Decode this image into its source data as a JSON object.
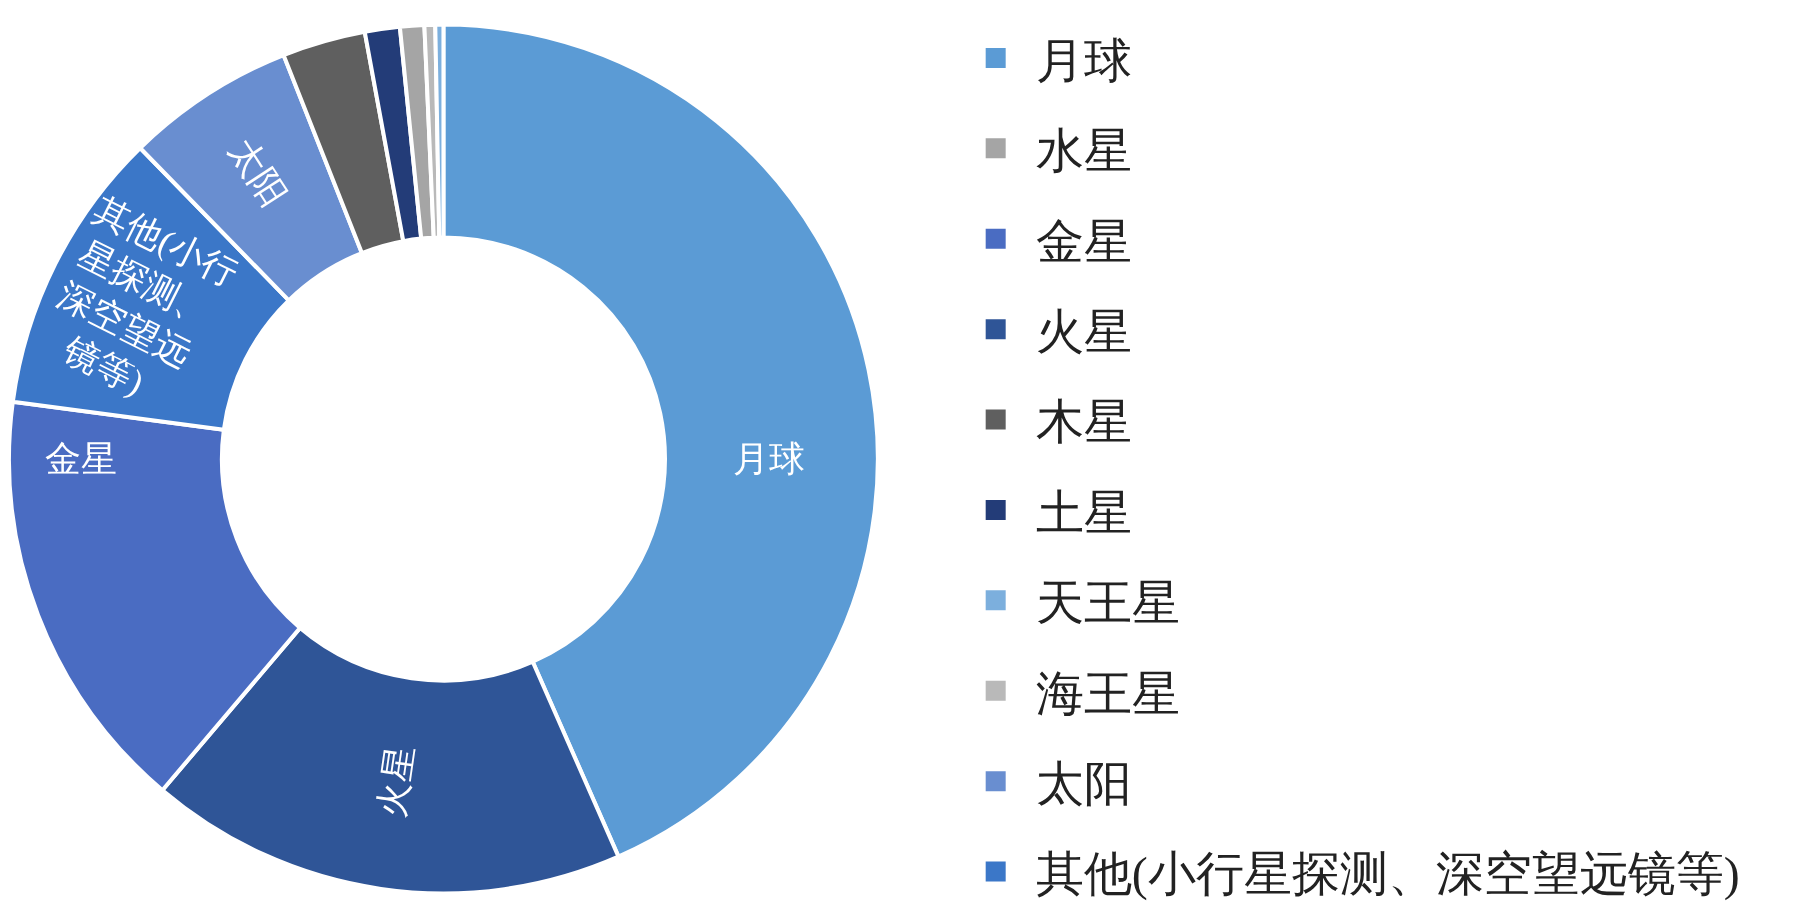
{
  "chart_data": {
    "type": "donut",
    "categories": [
      "月球",
      "水星",
      "金星",
      "火星",
      "木星",
      "土星",
      "天王星",
      "海王星",
      "太阳",
      "其他(小行星探测、深空望远镜等)"
    ],
    "values": [
      43.4,
      0.9,
      15.9,
      17.8,
      3.1,
      1.3,
      0.3,
      0.4,
      6.3,
      10.6
    ],
    "colors": [
      "#5b9bd5",
      "#a5a5a5",
      "#4a6cc2",
      "#2f5597",
      "#5f5f5f",
      "#233c78",
      "#7cafdd",
      "#b9b9b9",
      "#698ed0",
      "#3b77c8"
    ],
    "value_labels": [
      "月球",
      null,
      "金星",
      "火星",
      null,
      null,
      null,
      null,
      "太阳",
      "其他(小行星探测、深空望远镜等)"
    ],
    "legend": "right"
  }
}
